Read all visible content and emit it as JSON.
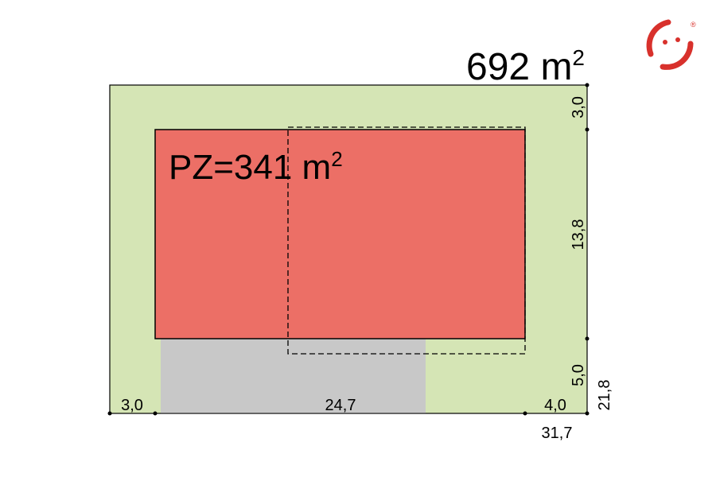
{
  "plot": {
    "area": "692 m",
    "area_sup": "2"
  },
  "building": {
    "label": "PZ=341 m",
    "label_sup": "2"
  },
  "dimensions": {
    "bottom": [
      "3,0",
      "24,7",
      "4,0"
    ],
    "side": [
      "3,0",
      "13,8",
      "5,0"
    ],
    "total_width": "31,7",
    "total_depth": "21,8"
  },
  "logo": {
    "mark": "®"
  }
}
